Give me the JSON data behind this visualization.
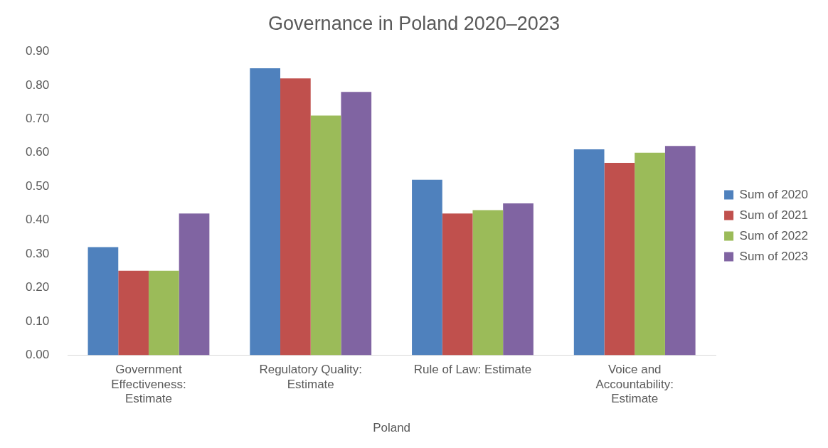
{
  "chart_data": {
    "type": "bar",
    "title": "Governance in Poland 2020–2023",
    "xlabel": "Poland",
    "categories": [
      "Government Effectiveness: Estimate",
      "Regulatory Quality: Estimate",
      "Rule of Law: Estimate",
      "Voice and Accountability: Estimate"
    ],
    "series": [
      {
        "name": "Sum of 2020",
        "color": "#4f81bd",
        "values": [
          0.32,
          0.85,
          0.52,
          0.61
        ]
      },
      {
        "name": "Sum of 2021",
        "color": "#c0504d",
        "values": [
          0.25,
          0.82,
          0.42,
          0.57
        ]
      },
      {
        "name": "Sum of 2022",
        "color": "#9bbb59",
        "values": [
          0.25,
          0.71,
          0.43,
          0.6
        ]
      },
      {
        "name": "Sum of 2023",
        "color": "#8064a2",
        "values": [
          0.42,
          0.78,
          0.45,
          0.62
        ]
      }
    ],
    "ylim": [
      0,
      0.9
    ],
    "yticks": [
      {
        "value": 0,
        "label": "0.00"
      },
      {
        "value": 0.1,
        "label": "0.10"
      },
      {
        "value": 0.2,
        "label": "0.20"
      },
      {
        "value": 0.3,
        "label": "0.30"
      },
      {
        "value": 0.4,
        "label": "0.40"
      },
      {
        "value": 0.5,
        "label": "0.50"
      },
      {
        "value": 0.6,
        "label": "0.60"
      },
      {
        "value": 0.7,
        "label": "0.70"
      },
      {
        "value": 0.8,
        "label": "0.80"
      },
      {
        "value": 0.9,
        "label": "0.90"
      }
    ],
    "grid": false,
    "legend": "right"
  }
}
